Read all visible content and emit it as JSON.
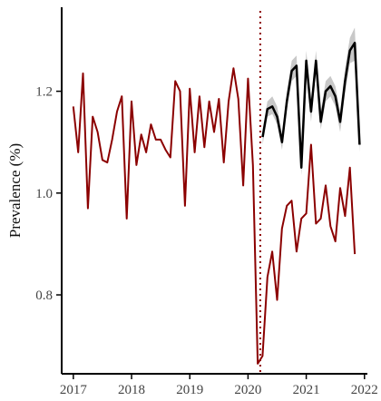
{
  "chart_data": {
    "type": "line",
    "ylabel": "Prevalence (%)",
    "xlabel": "",
    "xlim": [
      2016.8,
      2022.05
    ],
    "ylim": [
      0.645,
      1.365
    ],
    "x_ticks": [
      2017,
      2018,
      2019,
      2020,
      2021,
      2022
    ],
    "y_ticks": [
      0.8,
      1.0,
      1.2
    ],
    "y_tick_labels": [
      "0.8",
      "1.0",
      "1.2"
    ],
    "vline": {
      "x": 2020.21,
      "style": "dotted",
      "color": "#8b0000"
    },
    "colors": {
      "observed": "#8b0000",
      "expected": "#000000",
      "band": "#c8c8c8"
    },
    "series": [
      {
        "role": "observed",
        "x_start": 2017.0,
        "x_step": 0.08333,
        "values": [
          1.17,
          1.08,
          1.235,
          0.97,
          1.15,
          1.12,
          1.065,
          1.06,
          1.105,
          1.16,
          1.19,
          0.95,
          1.18,
          1.055,
          1.115,
          1.08,
          1.135,
          1.105,
          1.105,
          1.085,
          1.07,
          1.22,
          1.2,
          0.975,
          1.205,
          1.08,
          1.19,
          1.09,
          1.18,
          1.12,
          1.185,
          1.06,
          1.18,
          1.245,
          1.185,
          1.015,
          1.225,
          1.055,
          0.665,
          0.68,
          0.835,
          0.885,
          0.79,
          0.93,
          0.975,
          0.985,
          0.885,
          0.95,
          0.96,
          1.095,
          0.94,
          0.95,
          1.015,
          0.935,
          0.905,
          1.01,
          0.955,
          1.05,
          0.88
        ]
      },
      {
        "role": "expected",
        "x_start": 2020.25,
        "x_step": 0.08333,
        "values": [
          1.11,
          1.165,
          1.17,
          1.15,
          1.1,
          1.18,
          1.24,
          1.25,
          1.05,
          1.26,
          1.16,
          1.26,
          1.14,
          1.2,
          1.21,
          1.19,
          1.14,
          1.22,
          1.28,
          1.295,
          1.095
        ],
        "lower": [
          1.095,
          1.15,
          1.155,
          1.135,
          1.085,
          1.165,
          1.22,
          1.23,
          1.035,
          1.24,
          1.14,
          1.24,
          1.125,
          1.18,
          1.19,
          1.17,
          1.12,
          1.195,
          1.255,
          1.26,
          1.08
        ],
        "upper": [
          1.125,
          1.18,
          1.19,
          1.17,
          1.115,
          1.2,
          1.26,
          1.27,
          1.07,
          1.28,
          1.18,
          1.28,
          1.16,
          1.22,
          1.23,
          1.21,
          1.16,
          1.245,
          1.305,
          1.325,
          1.11
        ]
      }
    ]
  }
}
